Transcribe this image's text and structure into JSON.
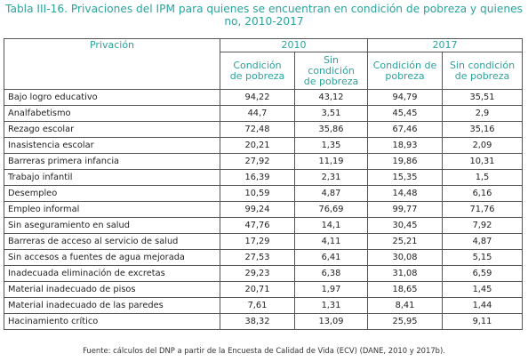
{
  "title_line1": "Tabla III-16. Privaciones del IPM para quienes se encuentran en condición de pobreza y quienes",
  "title_line2": "no, 2010-2017",
  "header": {
    "privacion": "Privación",
    "year_2010": "2010",
    "year_2017": "2017",
    "con_pobreza_line1": "Condición",
    "con_pobreza_line2": "de pobreza",
    "sin_pobreza_line1": "Sin",
    "sin_pobreza_line2": "condición",
    "sin_pobreza_line3": "de pobreza",
    "con_pobreza_2017_line1": "Condición de",
    "con_pobreza_2017_line2": "pobreza",
    "sin_pobreza_2017_line1": "Sin condición",
    "sin_pobreza_2017_line2": "de pobreza"
  },
  "rows": [
    {
      "label": "Bajo logro educativo",
      "c2010": "94,22",
      "s2010": "43,12",
      "c2017": "94,79",
      "s2017": "35,51"
    },
    {
      "label": "Analfabetismo",
      "c2010": "44,7",
      "s2010": "3,51",
      "c2017": "45,45",
      "s2017": "2,9"
    },
    {
      "label": "Rezago escolar",
      "c2010": "72,48",
      "s2010": "35,86",
      "c2017": "67,46",
      "s2017": "35,16"
    },
    {
      "label": "Inasistencia escolar",
      "c2010": "20,21",
      "s2010": "1,35",
      "c2017": "18,93",
      "s2017": "2,09"
    },
    {
      "label": "Barreras primera infancia",
      "c2010": "27,92",
      "s2010": "11,19",
      "c2017": "19,86",
      "s2017": "10,31"
    },
    {
      "label": "Trabajo infantil",
      "c2010": "16,39",
      "s2010": "2,31",
      "c2017": "15,35",
      "s2017": "1,5"
    },
    {
      "label": "Desempleo",
      "c2010": "10,59",
      "s2010": "4,87",
      "c2017": "14,48",
      "s2017": "6,16"
    },
    {
      "label": "Empleo informal",
      "c2010": "99,24",
      "s2010": "76,69",
      "c2017": "99,77",
      "s2017": "71,76"
    },
    {
      "label": "Sin aseguramiento en salud",
      "c2010": "47,76",
      "s2010": "14,1",
      "c2017": "30,45",
      "s2017": "7,92"
    },
    {
      "label": "Barreras de acceso al servicio de salud",
      "c2010": "17,29",
      "s2010": "4,11",
      "c2017": "25,21",
      "s2017": "4,87"
    },
    {
      "label": "Sin accesos a fuentes de agua mejorada",
      "c2010": "27,53",
      "s2010": "6,41",
      "c2017": "30,08",
      "s2017": "5,15"
    },
    {
      "label": "Inadecuada eliminación de excretas",
      "c2010": "29,23",
      "s2010": "6,38",
      "c2017": "31,08",
      "s2017": "6,59"
    },
    {
      "label": "Material inadecuado de pisos",
      "c2010": "20,71",
      "s2010": "1,97",
      "c2017": "18,65",
      "s2017": "1,45"
    },
    {
      "label": "Material inadecuado de las paredes",
      "c2010": "7,61",
      "s2010": "1,31",
      "c2017": "8,41",
      "s2017": "1,44"
    },
    {
      "label": "Hacinamiento crítico",
      "c2010": "38,32",
      "s2010": "13,09",
      "c2017": "25,95",
      "s2017": "9,11"
    }
  ],
  "source": "Fuente: cálculos del DNP a partir de la Encuesta de Calidad de Vida (ECV) (DANE, 2010 y 2017b)."
}
